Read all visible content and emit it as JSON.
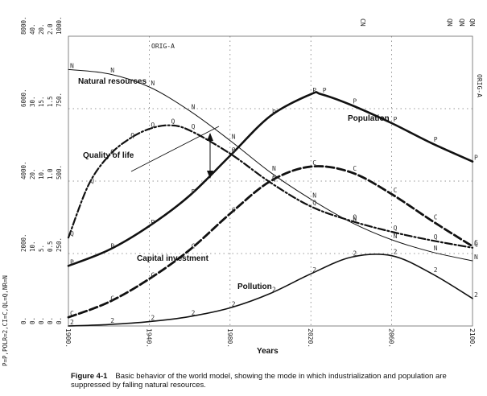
{
  "chart_data": {
    "type": "line",
    "title": "",
    "xlabel": "Years",
    "xlim": [
      1900,
      2100
    ],
    "x_ticks": [
      1900,
      1940,
      1980,
      2020,
      2060,
      2100
    ],
    "x_tick_labels": [
      "1900.",
      "1940.",
      "1980.",
      "2020.",
      "2060.",
      "2100."
    ],
    "ylim": [
      0,
      4
    ],
    "y_scale_columns": [
      [
        "0.",
        "2000.",
        "4000.",
        "6000.",
        "8000."
      ],
      [
        "0.",
        "10.",
        "20.",
        "30.",
        "40."
      ],
      [
        "0.",
        "5.",
        "10.",
        "15.",
        "20."
      ],
      [
        "0.",
        "0.5",
        "1.0",
        "1.5",
        "2.0"
      ],
      [
        "0.",
        "250.",
        "500.",
        "750.",
        "1000."
      ]
    ],
    "y_axis_label": "P=P,POLR=2,CI=C,QL=Q,NR=N",
    "top_labels": [
      "ORIG-A",
      "CN",
      "QN",
      "QN",
      "QN"
    ],
    "right_label": "ORIG-A",
    "grid": "dotted",
    "series": [
      {
        "name": "Natural resources",
        "marker": "N",
        "style": "thin",
        "x": [
          1900,
          1920,
          1940,
          1960,
          1980,
          2000,
          2020,
          2040,
          2060,
          2080,
          2100
        ],
        "y": [
          3.54,
          3.48,
          3.3,
          2.97,
          2.56,
          2.12,
          1.75,
          1.43,
          1.19,
          1.02,
          0.9
        ]
      },
      {
        "name": "Population",
        "marker": "P",
        "style": "thick-solid",
        "x": [
          1900,
          1920,
          1940,
          1960,
          1980,
          2000,
          2020,
          2025,
          2040,
          2060,
          2080,
          2100
        ],
        "y": [
          0.83,
          1.05,
          1.38,
          1.8,
          2.35,
          2.9,
          3.2,
          3.2,
          3.05,
          2.8,
          2.52,
          2.27
        ]
      },
      {
        "name": "Quality of life",
        "marker": "Q",
        "style": "dash-dot",
        "x": [
          1900,
          1910,
          1920,
          1930,
          1940,
          1950,
          1960,
          1980,
          2000,
          2020,
          2040,
          2060,
          2080,
          2100
        ],
        "y": [
          1.22,
          1.95,
          2.35,
          2.58,
          2.72,
          2.77,
          2.7,
          2.38,
          1.98,
          1.65,
          1.45,
          1.3,
          1.18,
          1.08
        ]
      },
      {
        "name": "Capital investment",
        "marker": "C",
        "style": "thick-dashed",
        "x": [
          1900,
          1920,
          1940,
          1960,
          1980,
          2000,
          2020,
          2040,
          2060,
          2080,
          2100
        ],
        "y": [
          0.12,
          0.33,
          0.65,
          1.05,
          1.55,
          2.0,
          2.2,
          2.12,
          1.82,
          1.45,
          1.1
        ]
      },
      {
        "name": "Pollution",
        "marker": "2",
        "style": "solid",
        "x": [
          1900,
          1920,
          1940,
          1960,
          1980,
          2000,
          2020,
          2040,
          2060,
          2080,
          2100
        ],
        "y": [
          0.0,
          0.02,
          0.06,
          0.13,
          0.25,
          0.45,
          0.72,
          0.95,
          0.97,
          0.72,
          0.38
        ]
      }
    ]
  },
  "caption": {
    "number": "Figure 4-1",
    "text": "Basic behavior of the world model, showing the mode in which industrialization and population are suppressed by falling natural resources."
  }
}
